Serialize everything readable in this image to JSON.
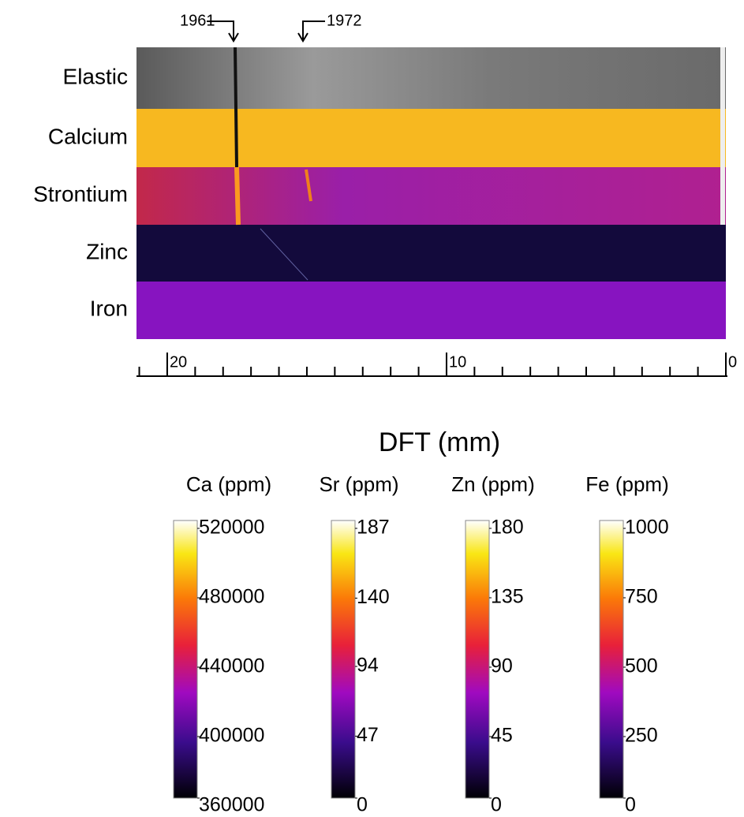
{
  "annotations": [
    "1961",
    "1972"
  ],
  "rows": [
    "Elastic",
    "Calcium",
    "Strontium",
    "Zinc",
    "Iron"
  ],
  "axis": {
    "label": "DFT (mm)",
    "xlim": [
      21.1,
      0
    ],
    "xticks": [
      20,
      10,
      0
    ],
    "minor_xticks": [
      21,
      20,
      19,
      18,
      17,
      16,
      15,
      14,
      13,
      12,
      11,
      10,
      9,
      8,
      7,
      6,
      5,
      4,
      3,
      2,
      1,
      0
    ]
  },
  "colorbars": [
    {
      "title": "Ca (ppm)",
      "lim": [
        360000,
        520000
      ],
      "ticks": [
        360000,
        400000,
        440000,
        480000,
        520000
      ]
    },
    {
      "title": "Sr (ppm)",
      "lim": [
        0,
        187
      ],
      "ticks": [
        0,
        47,
        94,
        140,
        187
      ]
    },
    {
      "title": "Zn (ppm)",
      "lim": [
        0,
        180
      ],
      "ticks": [
        0,
        45,
        90,
        135,
        180
      ]
    },
    {
      "title": "Fe (ppm)",
      "lim": [
        0,
        1000
      ],
      "ticks": [
        0,
        250,
        500,
        750,
        1000
      ]
    }
  ]
}
